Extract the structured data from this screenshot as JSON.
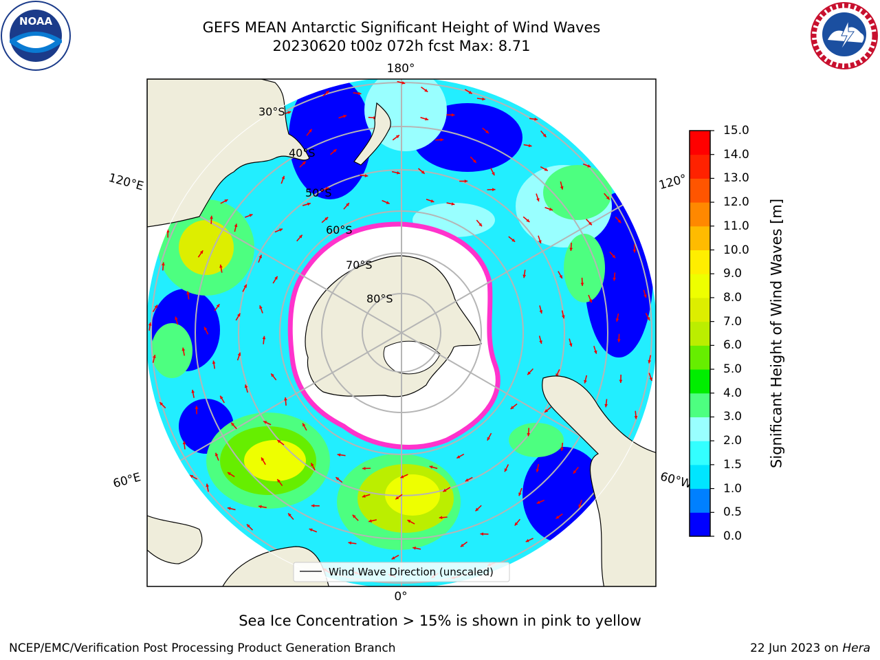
{
  "title": {
    "line1": "GEFS MEAN Antarctic Significant Height of Wind Waves",
    "line2": "20230620 t00z 072h fcst   Max: 8.71"
  },
  "logos": {
    "left": {
      "text": "NOAA",
      "icon": "noaa-logo-icon"
    },
    "right": {
      "icon": "nws-logo-icon"
    }
  },
  "map": {
    "projection": "south-polar-stereographic",
    "longitude_labels": [
      "180°",
      "120°E",
      "120°",
      "60°E",
      "60°W",
      "0°"
    ],
    "latitude_labels": [
      "30°S",
      "40°S",
      "50°S",
      "60°S",
      "70°S",
      "80°S"
    ],
    "legend": "Wind Wave Direction (unscaled)"
  },
  "colorbar": {
    "label": "Significant Height of Wind Waves [m]",
    "ticks": [
      "0.0",
      "0.5",
      "1.0",
      "1.5",
      "2.0",
      "3.0",
      "4.0",
      "5.0",
      "6.0",
      "7.0",
      "8.0",
      "9.0",
      "10.0",
      "11.0",
      "12.0",
      "13.0",
      "14.0",
      "15.0"
    ],
    "colors": [
      "#0000ff",
      "#0080ff",
      "#00e5ff",
      "#33ffff",
      "#99ffff",
      "#4dff80",
      "#00ee00",
      "#66ee00",
      "#bbee00",
      "#ddee00",
      "#eeff00",
      "#ffee00",
      "#ffbb00",
      "#ff8800",
      "#ff5500",
      "#ff2200",
      "#ff0000"
    ]
  },
  "footer": {
    "note": "Sea Ice Concentration > 15% is shown in pink to yellow",
    "left": "NCEP/EMC/Verification Post Processing Product Generation Branch",
    "date": "22 Jun 2023 on ",
    "machine": "Hera"
  }
}
